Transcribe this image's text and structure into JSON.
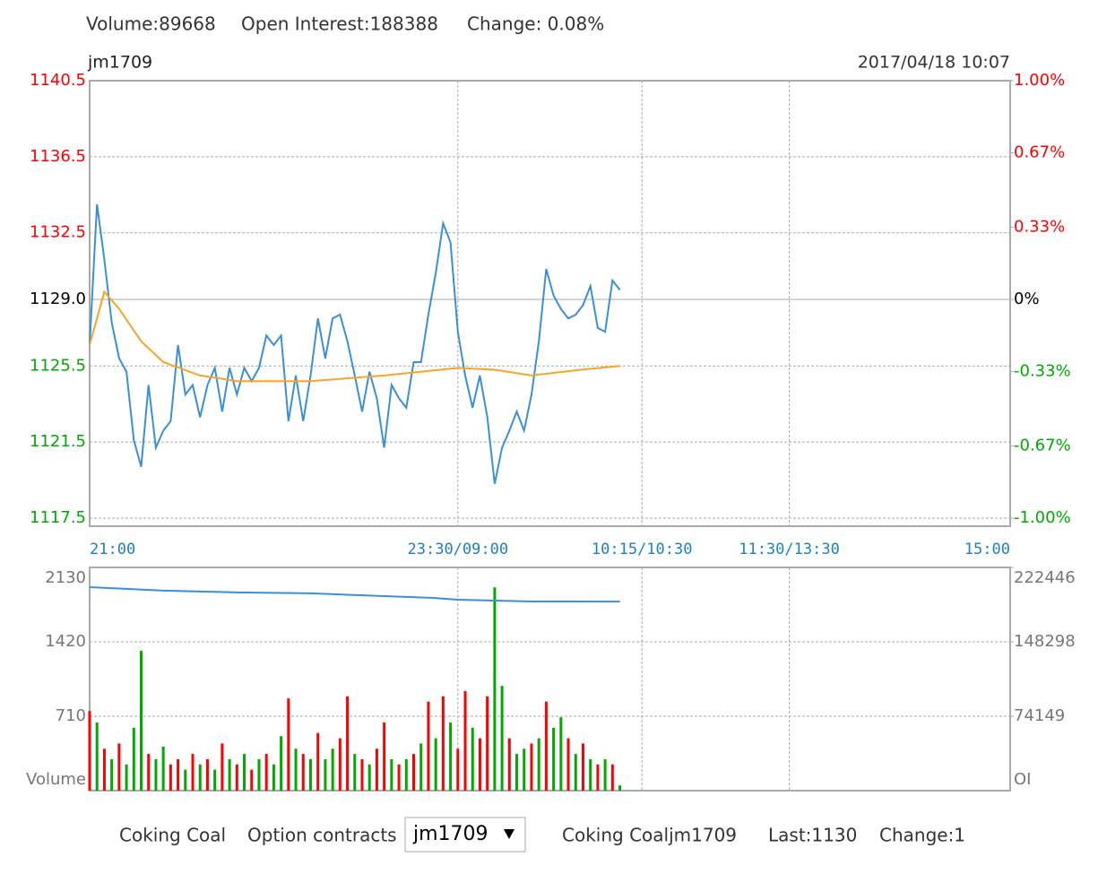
{
  "header": {
    "volume": "Volume:89668",
    "open_interest": "Open Interest:188388",
    "change": "Change: 0.08%"
  },
  "contract": "jm1709",
  "timestamp": "2017/04/18 10:07",
  "chart_data": [
    {
      "type": "line",
      "xlim": [
        0,
        375
      ],
      "xticks": [
        {
          "value": 0,
          "label": "21:00"
        },
        {
          "value": 150,
          "label": "23:30/09:00"
        },
        {
          "value": 225,
          "label": "10:15/10:30"
        },
        {
          "value": 285,
          "label": "11:30/13:30"
        },
        {
          "value": 375,
          "label": "15:00"
        }
      ],
      "ylim": [
        1117.5,
        1140.5
      ],
      "yticks": [
        1117.5,
        1121.5,
        1125.5,
        {
          "value": 1129,
          "label": "1129.0"
        },
        1132.5,
        1136.5,
        1140.5
      ],
      "y2lim": [
        -1,
        1
      ],
      "y2ticks": [
        {
          "value": -1,
          "label": "-1.00%"
        },
        {
          "value": -0.67,
          "label": "-0.67%"
        },
        {
          "value": -0.33,
          "label": "-0.33%"
        },
        {
          "value": 0,
          "label": "0%"
        },
        {
          "value": 0.33,
          "label": "0.33%"
        },
        {
          "value": 0.67,
          "label": "0.67%"
        },
        {
          "value": 1,
          "label": "1.00%"
        }
      ],
      "up_color": "#ff0000",
      "down_color": "#00aa00",
      "x_tick_color": "#1e7fc0",
      "grid": true,
      "series": [
        {
          "type": "line",
          "color": "#3a8fd9",
          "x": [
            0,
            3,
            6,
            9,
            12,
            15,
            18,
            21,
            24,
            27,
            30,
            33,
            36,
            39,
            42,
            45,
            48,
            51,
            54,
            57,
            60,
            63,
            66,
            69,
            72,
            75,
            78,
            81,
            84,
            87,
            90,
            93,
            96,
            99,
            102,
            105,
            108,
            111,
            114,
            117,
            120,
            123,
            126,
            129,
            132,
            135,
            138,
            141,
            144,
            147,
            150,
            153,
            156,
            159,
            162,
            165,
            168,
            171,
            174,
            177,
            180,
            183,
            186,
            189,
            192,
            195,
            198,
            201,
            204,
            207,
            210,
            213,
            216
          ],
          "values": [
            1126.6,
            1134,
            1131.1,
            1127.8,
            1125.9,
            1125.2,
            1121.6,
            1120.2,
            1124.5,
            1121.2,
            1122.1,
            1122.6,
            1126.6,
            1124,
            1124.5,
            1122.8,
            1124.5,
            1125.4,
            1123.1,
            1125.4,
            1124,
            1125.4,
            1124.7,
            1125.4,
            1127.1,
            1126.6,
            1127.1,
            1122.6,
            1125,
            1122.6,
            1125,
            1128,
            1125.9,
            1128,
            1128.2,
            1126.8,
            1125,
            1123.1,
            1125.2,
            1123.8,
            1121.2,
            1124.5,
            1123.8,
            1123.3,
            1125.7,
            1125.7,
            1128.2,
            1130.4,
            1133,
            1132,
            1127.3,
            1125,
            1123.3,
            1125,
            1122.8,
            1119.3,
            1121.2,
            1122.1,
            1123.1,
            1122.1,
            1124,
            1126.8,
            1130.6,
            1129.2,
            1128.5,
            1128,
            1128.2,
            1128.7,
            1129.7,
            1127.5,
            1127.3,
            1130,
            1129.5
          ]
        },
        {
          "type": "line",
          "color": "#f5a623",
          "x": [
            0,
            6,
            12,
            21,
            30,
            45,
            60,
            90,
            120,
            150,
            165,
            180,
            200,
            216
          ],
          "values": [
            1126.6,
            1129.4,
            1128.5,
            1126.8,
            1125.7,
            1125,
            1124.7,
            1124.7,
            1125,
            1125.4,
            1125.3,
            1125,
            1125.3,
            1125.5
          ]
        }
      ]
    },
    {
      "type": "bar",
      "xlim": [
        0,
        375
      ],
      "xticks": [
        0,
        150,
        225,
        285,
        375
      ],
      "ylim": [
        0,
        2130
      ],
      "yticks": [
        710,
        1420,
        2130
      ],
      "ylabel": "Volume",
      "y2lim": [
        0,
        222446
      ],
      "y2ticks": [
        74149,
        148298,
        222446
      ],
      "y2label": "OI",
      "tick_color": "#777777",
      "grid": true,
      "series": [
        {
          "type": "bar",
          "x": [
            0,
            3,
            6,
            9,
            12,
            15,
            18,
            21,
            24,
            27,
            30,
            33,
            36,
            39,
            42,
            45,
            48,
            51,
            54,
            57,
            60,
            63,
            66,
            69,
            72,
            75,
            78,
            81,
            84,
            87,
            90,
            93,
            96,
            99,
            102,
            105,
            108,
            111,
            114,
            117,
            120,
            123,
            126,
            129,
            132,
            135,
            138,
            141,
            144,
            147,
            150,
            153,
            156,
            159,
            162,
            165,
            168,
            171,
            174,
            177,
            180,
            183,
            186,
            189,
            192,
            195,
            198,
            201,
            204,
            207,
            210,
            213,
            216
          ],
          "values": [
            760,
            650,
            400,
            300,
            450,
            250,
            600,
            1335,
            350,
            300,
            420,
            250,
            300,
            200,
            350,
            250,
            300,
            200,
            450,
            300,
            250,
            350,
            200,
            300,
            350,
            250,
            520,
            880,
            400,
            350,
            300,
            550,
            300,
            400,
            500,
            900,
            350,
            300,
            250,
            400,
            650,
            300,
            250,
            300,
            350,
            450,
            850,
            500,
            900,
            650,
            400,
            950,
            600,
            500,
            900,
            1940,
            1000,
            500,
            350,
            400,
            450,
            500,
            850,
            600,
            700,
            500,
            350,
            450,
            300,
            250,
            300,
            250,
            50
          ],
          "colors": [
            "#ff0000",
            "#00aa00",
            "#ff0000",
            "#00aa00",
            "#ff0000",
            "#00aa00",
            "#00aa00",
            "#00aa00",
            "#ff0000",
            "#00aa00",
            "#00aa00",
            "#ff0000",
            "#ff0000",
            "#00aa00",
            "#ff0000",
            "#00aa00",
            "#ff0000",
            "#00aa00",
            "#ff0000",
            "#00aa00",
            "#ff0000",
            "#00aa00",
            "#ff0000",
            "#00aa00",
            "#ff0000",
            "#00aa00",
            "#00aa00",
            "#ff0000",
            "#00aa00",
            "#ff0000",
            "#00aa00",
            "#ff0000",
            "#00aa00",
            "#00aa00",
            "#ff0000",
            "#ff0000",
            "#00aa00",
            "#ff0000",
            "#00aa00",
            "#ff0000",
            "#ff0000",
            "#00aa00",
            "#ff0000",
            "#00aa00",
            "#ff0000",
            "#00aa00",
            "#ff0000",
            "#00aa00",
            "#ff0000",
            "#00aa00",
            "#ff0000",
            "#ff0000",
            "#00aa00",
            "#ff0000",
            "#ff0000",
            "#00aa00",
            "#00aa00",
            "#ff0000",
            "#00aa00",
            "#00aa00",
            "#ff0000",
            "#00aa00",
            "#ff0000",
            "#00aa00",
            "#00aa00",
            "#ff0000",
            "#00aa00",
            "#ff0000",
            "#00aa00",
            "#ff0000",
            "#00aa00",
            "#ff0000",
            "#00aa00"
          ]
        },
        {
          "type": "line",
          "axis": "y2",
          "color": "#3a8fd9",
          "x": [
            0,
            30,
            60,
            90,
            120,
            140,
            150,
            180,
            216
          ],
          "values": [
            202800,
            199300,
            197500,
            196600,
            193900,
            192100,
            190300,
            188500,
            188388
          ]
        }
      ]
    }
  ],
  "footer": {
    "product": "Coking Coal",
    "option_label": "Option contracts",
    "selected": "jm1709",
    "product_contract": "Coking Coaljm1709",
    "last": "Last:1130",
    "change": "Change:1"
  }
}
